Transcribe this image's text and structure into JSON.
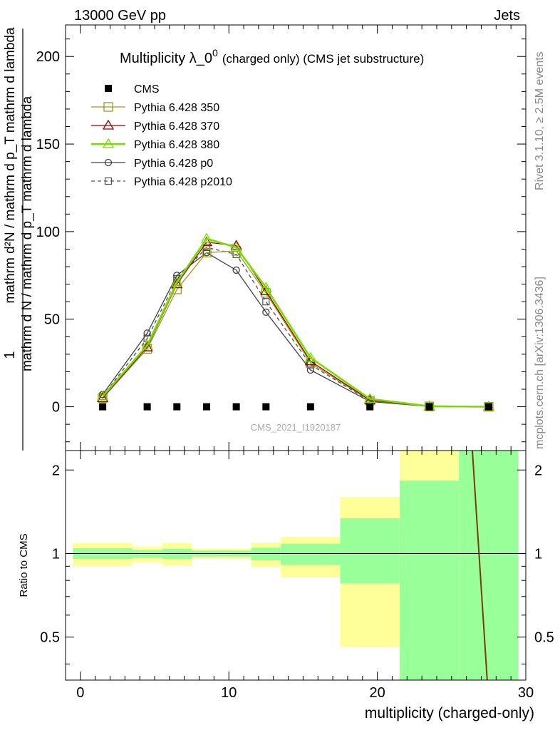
{
  "header": {
    "left": "13000 GeV pp",
    "right": "Jets"
  },
  "side_labels": {
    "rivet": "Rivet 3.1.10, ≥ 2.5M events",
    "mcplots": "mcplots.cern.ch [arXiv:1306.3436]"
  },
  "chart_data": [
    {
      "type": "line",
      "title_main": "Multiplicity λ_0",
      "title_sup": "0",
      "title_sub": "(charged only) (CMS jet substructure)",
      "ylabel_numerator": "1",
      "ylabel_denominator": "mathrm d N / mathrm d p_T mathrm d lambda",
      "ylabel_upper": "mathrm d²N / mathrm d p_T mathrm d lambda",
      "xlim": [
        -1,
        30
      ],
      "ylim": [
        -25,
        218
      ],
      "yticks": [
        0,
        50,
        100,
        150,
        200
      ],
      "watermark": "CMS_2021_I1920187",
      "series": [
        {
          "name": "CMS",
          "color": "#000000",
          "marker": "filled-square",
          "line": "none",
          "points": [
            [
              1.5,
              0
            ],
            [
              4.5,
              0
            ],
            [
              6.5,
              0
            ],
            [
              8.5,
              0
            ],
            [
              10.5,
              0
            ],
            [
              12.5,
              0
            ],
            [
              15.5,
              0
            ],
            [
              19.5,
              0
            ],
            [
              23.5,
              0
            ],
            [
              27.5,
              0
            ]
          ]
        },
        {
          "name": "Pythia 6.428 350",
          "color": "#9a9a20",
          "marker": "open-square",
          "line": "solid",
          "points": [
            [
              1.5,
              5
            ],
            [
              4.5,
              33
            ],
            [
              6.5,
              67
            ],
            [
              8.5,
              88
            ],
            [
              10.5,
              89
            ],
            [
              12.5,
              65
            ],
            [
              15.5,
              25
            ],
            [
              19.5,
              3.5
            ],
            [
              23.5,
              0.2
            ],
            [
              27.5,
              0
            ]
          ]
        },
        {
          "name": "Pythia 6.428 370",
          "color": "#990000",
          "marker": "open-triangle",
          "line": "solid",
          "points": [
            [
              1.5,
              5
            ],
            [
              4.5,
              34
            ],
            [
              6.5,
              70
            ],
            [
              8.5,
              94
            ],
            [
              10.5,
              92
            ],
            [
              12.5,
              66
            ],
            [
              15.5,
              26
            ],
            [
              19.5,
              3.8
            ],
            [
              23.5,
              0.2
            ],
            [
              27.5,
              0
            ]
          ]
        },
        {
          "name": "Pythia 6.428 380",
          "color": "#77dd00",
          "marker": "open-triangle",
          "line": "solid-thick",
          "points": [
            [
              1.5,
              6
            ],
            [
              4.5,
              35
            ],
            [
              6.5,
              71
            ],
            [
              8.5,
              96
            ],
            [
              10.5,
              91
            ],
            [
              12.5,
              68
            ],
            [
              15.5,
              28
            ],
            [
              19.5,
              4.5
            ],
            [
              23.5,
              0.3
            ],
            [
              27.5,
              0
            ]
          ]
        },
        {
          "name": "Pythia 6.428 p0",
          "color": "#404040",
          "marker": "open-circle",
          "line": "solid",
          "points": [
            [
              1.5,
              7
            ],
            [
              4.5,
              42
            ],
            [
              6.5,
              75
            ],
            [
              8.5,
              88
            ],
            [
              10.5,
              78
            ],
            [
              12.5,
              54
            ],
            [
              15.5,
              21
            ],
            [
              19.5,
              3
            ],
            [
              23.5,
              0.2
            ],
            [
              27.5,
              0
            ]
          ]
        },
        {
          "name": "Pythia 6.428 p2010",
          "color": "#505050",
          "marker": "open-square-small",
          "line": "dashed",
          "points": [
            [
              1.5,
              6
            ],
            [
              4.5,
              39
            ],
            [
              6.5,
              73
            ],
            [
              8.5,
              91
            ],
            [
              10.5,
              87
            ],
            [
              12.5,
              60
            ],
            [
              15.5,
              24
            ],
            [
              19.5,
              3.2
            ],
            [
              23.5,
              0.2
            ],
            [
              27.5,
              0
            ]
          ]
        }
      ]
    },
    {
      "type": "line",
      "ylabel": "Ratio to CMS",
      "xlabel": "multiplicity (charged-only)",
      "xlim": [
        -1,
        30
      ],
      "ylim": [
        0.35,
        2.35
      ],
      "xticks": [
        0,
        10,
        20,
        30
      ],
      "yticks": [
        0.5,
        1,
        2
      ],
      "reference_line": 1,
      "uncertainty_bands": [
        {
          "x0": -0.5,
          "x1": 3.5,
          "y_lo": 0.9,
          "y_hi": 1.09,
          "inner_lo": 0.955,
          "inner_hi": 1.045
        },
        {
          "x0": 3.5,
          "x1": 5.5,
          "y_lo": 0.93,
          "y_hi": 1.06,
          "inner_lo": 0.965,
          "inner_hi": 1.03
        },
        {
          "x0": 5.5,
          "x1": 7.5,
          "y_lo": 0.905,
          "y_hi": 1.09,
          "inner_lo": 0.955,
          "inner_hi": 1.04
        },
        {
          "x0": 7.5,
          "x1": 9.5,
          "y_lo": 0.96,
          "y_hi": 1.04,
          "inner_lo": 0.975,
          "inner_hi": 1.025
        },
        {
          "x0": 9.5,
          "x1": 11.5,
          "y_lo": 0.955,
          "y_hi": 1.04,
          "inner_lo": 0.975,
          "inner_hi": 1.025
        },
        {
          "x0": 11.5,
          "x1": 13.5,
          "y_lo": 0.895,
          "y_hi": 1.095,
          "inner_lo": 0.945,
          "inner_hi": 1.05
        },
        {
          "x0": 13.5,
          "x1": 17.5,
          "y_lo": 0.82,
          "y_hi": 1.15,
          "inner_lo": 0.91,
          "inner_hi": 1.085
        },
        {
          "x0": 17.5,
          "x1": 21.5,
          "y_lo": 0.46,
          "y_hi": 1.6,
          "inner_lo": 0.78,
          "inner_hi": 1.34
        },
        {
          "x0": 21.5,
          "x1": 25.5,
          "y_lo": 0.3,
          "y_hi": 2.6,
          "inner_lo": 0.3,
          "inner_hi": 1.83
        },
        {
          "x0": 25.5,
          "x1": 29.5,
          "y_lo": 0.3,
          "y_hi": 2.6,
          "inner_lo": 0.3,
          "inner_hi": 2.6
        }
      ],
      "ratio_line": {
        "color": "#7a3a10",
        "points": [
          [
            26.4,
            2.6
          ],
          [
            27.4,
            0.3
          ]
        ]
      }
    }
  ]
}
